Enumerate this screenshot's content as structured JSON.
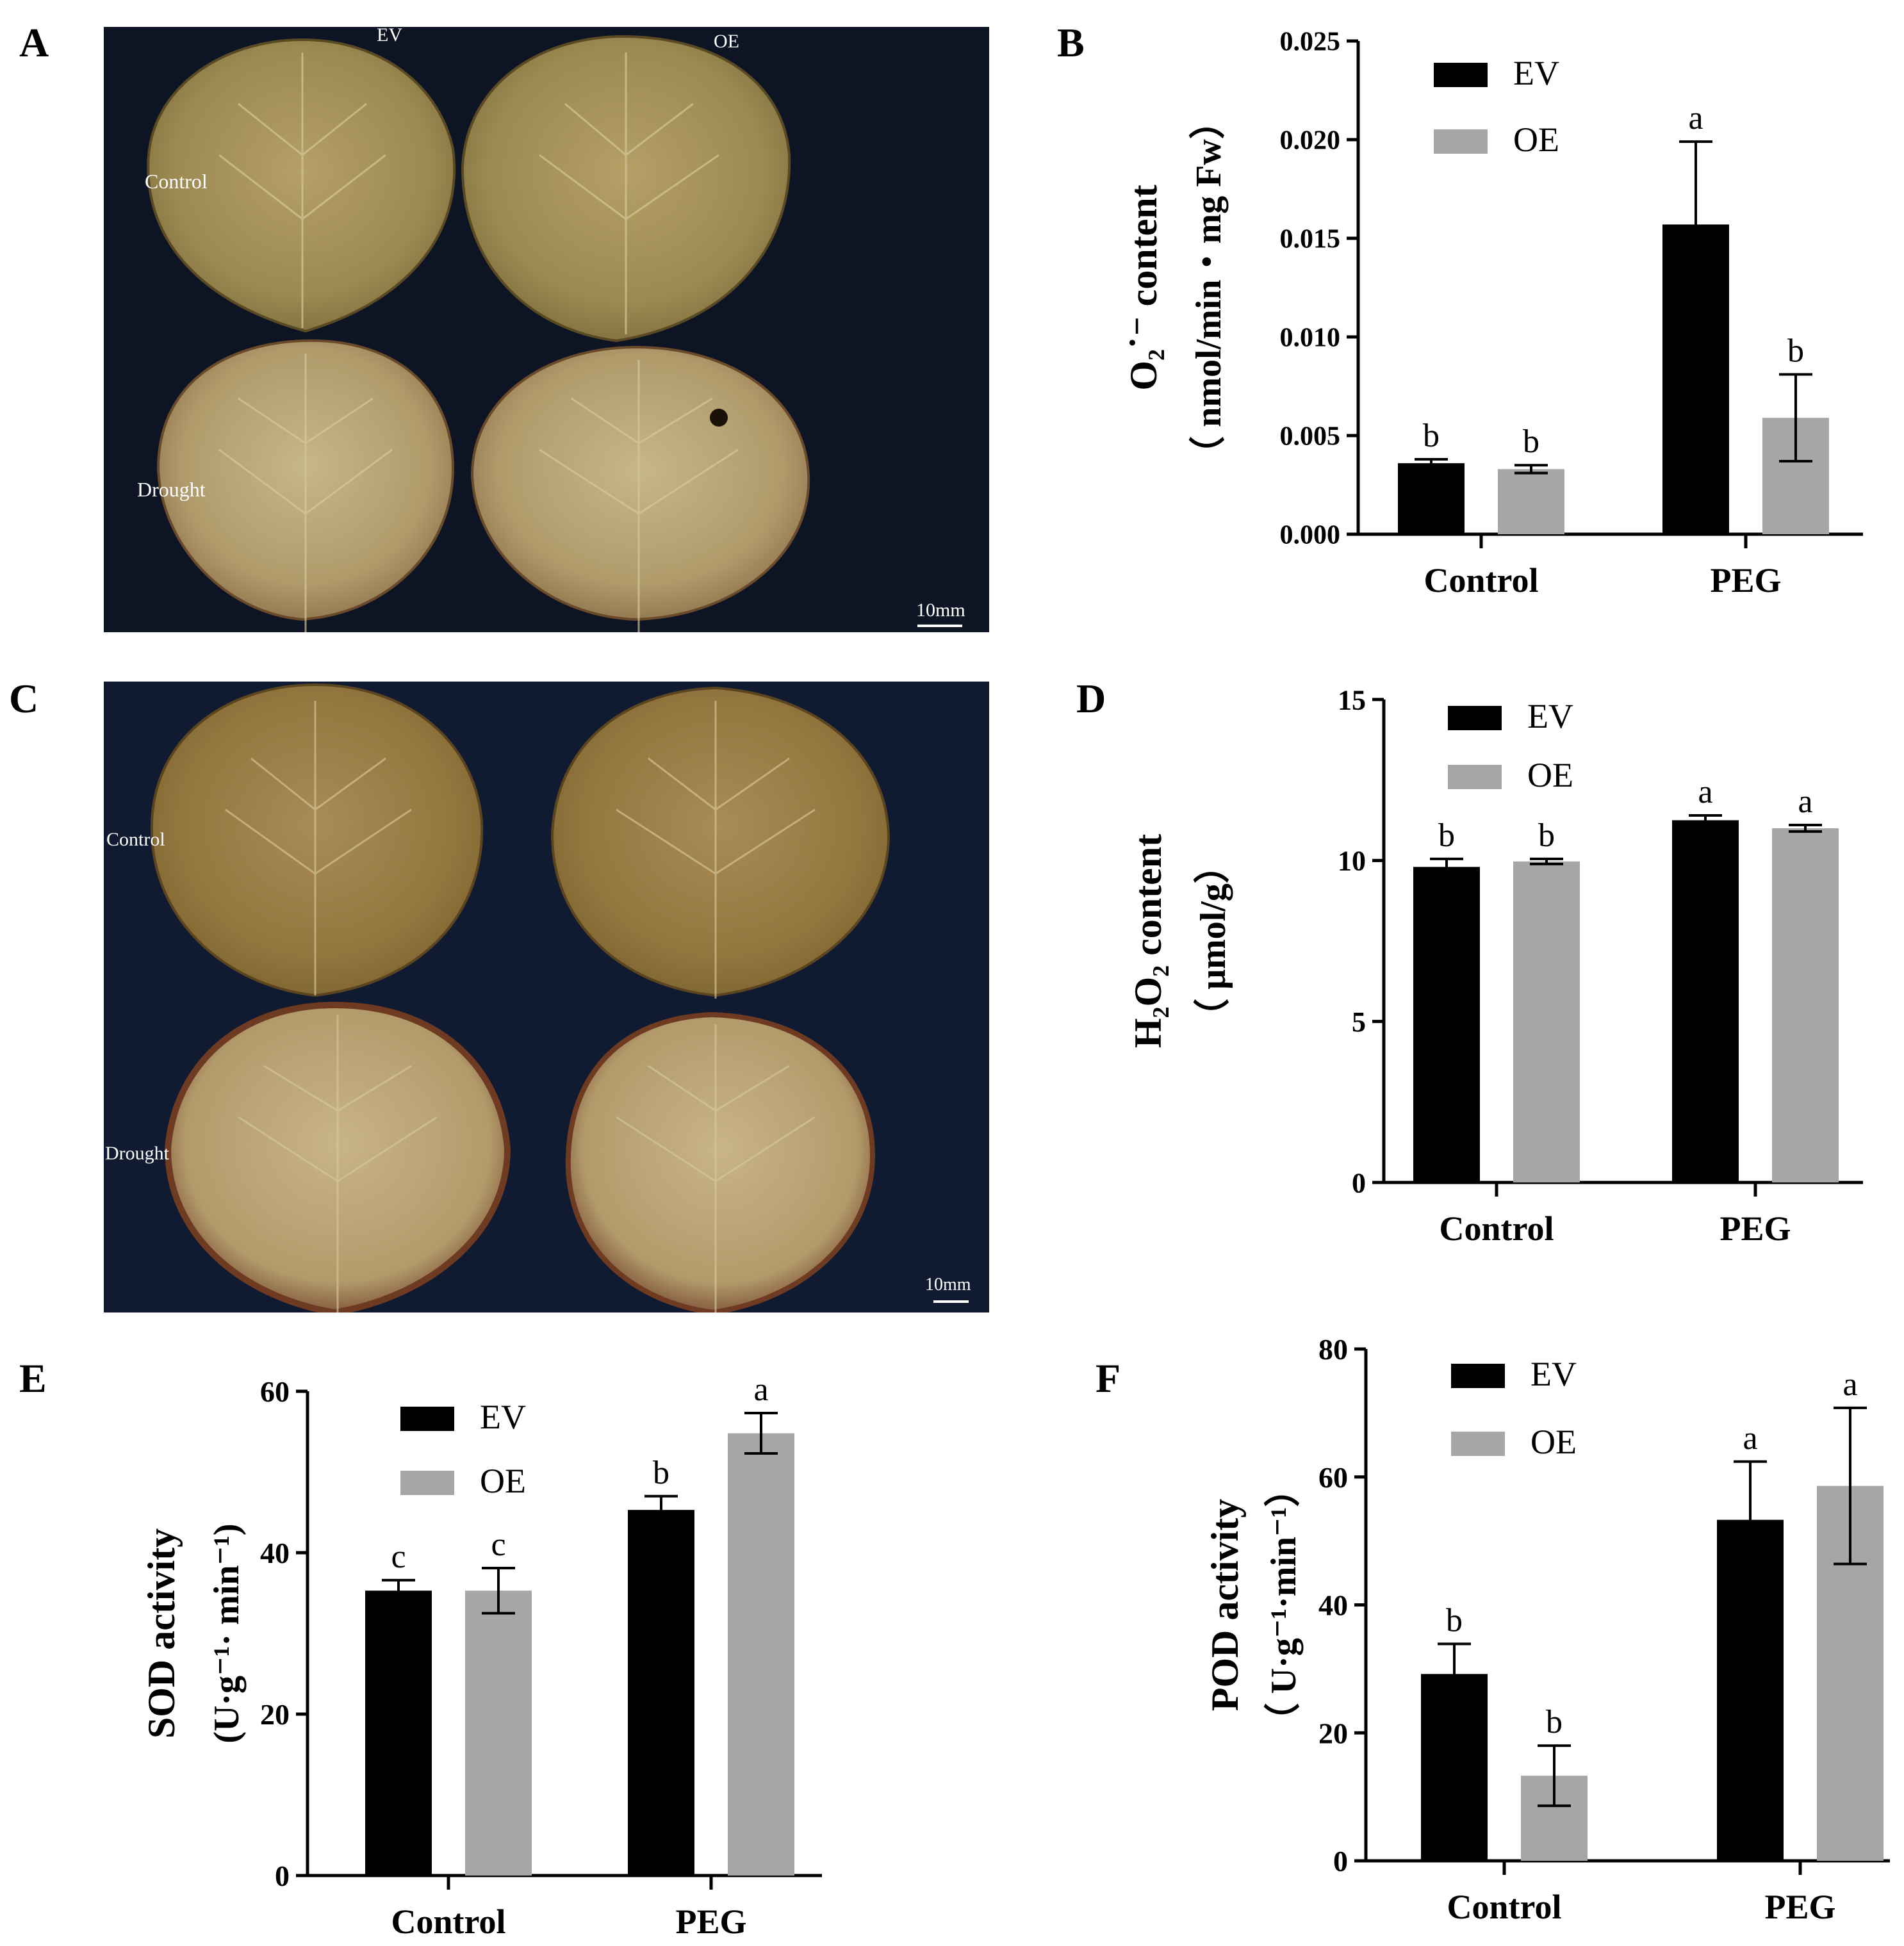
{
  "panels": {
    "A": "A",
    "B": "B",
    "C": "C",
    "D": "D",
    "E": "E",
    "F": "F"
  },
  "photoA": {
    "col_labels": [
      "EV",
      "OE"
    ],
    "row_labels": [
      "Control",
      "Drought"
    ],
    "scale": "10mm"
  },
  "photoC": {
    "row_labels": [
      "Control",
      "Drought"
    ],
    "scale": "10mm"
  },
  "colors": {
    "EV": "#000000",
    "OE": "#a6a6a6",
    "photo_bg": "#0d1424"
  },
  "chart_data": [
    {
      "panel": "B",
      "type": "bar",
      "categories": [
        "Control",
        "PEG"
      ],
      "series": [
        {
          "name": "EV",
          "values": [
            0.0036,
            0.0157
          ],
          "errors": [
            0.0002,
            0.0042
          ],
          "letters": [
            "b",
            "a"
          ]
        },
        {
          "name": "OE",
          "values": [
            0.0033,
            0.0059
          ],
          "errors": [
            0.0002,
            0.0022
          ],
          "letters": [
            "b",
            "b"
          ]
        }
      ],
      "ylim": [
        0,
        0.025
      ],
      "yticks": [
        "0.000",
        "0.005",
        "0.010",
        "0.015",
        "0.020",
        "0.025"
      ],
      "ylabel_line1": "O₂˙⁻ content",
      "ylabel_line2": "（ nmol/min・mg Fw）",
      "legend": "top-left"
    },
    {
      "panel": "D",
      "type": "bar",
      "categories": [
        "Control",
        "PEG"
      ],
      "series": [
        {
          "name": "EV",
          "values": [
            9.8,
            11.25
          ],
          "errors": [
            0.25,
            0.15
          ],
          "letters": [
            "b",
            "a"
          ]
        },
        {
          "name": "OE",
          "values": [
            9.97,
            11.0
          ],
          "errors": [
            0.08,
            0.1
          ],
          "letters": [
            "b",
            "a"
          ]
        }
      ],
      "ylim": [
        0,
        15
      ],
      "yticks": [
        "0",
        "5",
        "10",
        "15"
      ],
      "ylabel_line1": "H₂O₂ content",
      "ylabel_line2": "（ μmol/g）",
      "legend": "top-left"
    },
    {
      "panel": "E",
      "type": "bar",
      "categories": [
        "Control",
        "PEG"
      ],
      "series": [
        {
          "name": "EV",
          "values": [
            35.3,
            45.3
          ],
          "errors": [
            1.3,
            1.7
          ],
          "letters": [
            "c",
            "b"
          ]
        },
        {
          "name": "OE",
          "values": [
            35.3,
            54.8
          ],
          "errors": [
            2.8,
            2.5
          ],
          "letters": [
            "c",
            "a"
          ]
        }
      ],
      "ylim": [
        0,
        60
      ],
      "yticks": [
        "0",
        "20",
        "40",
        "60"
      ],
      "ylabel_line1": "SOD activity",
      "ylabel_line2": "(U·g⁻¹· min⁻¹)",
      "legend": "top-left"
    },
    {
      "panel": "F",
      "type": "bar",
      "categories": [
        "Control",
        "PEG"
      ],
      "series": [
        {
          "name": "EV",
          "values": [
            29.2,
            53.3
          ],
          "errors": [
            4.7,
            9.1
          ],
          "letters": [
            "b",
            "a"
          ]
        },
        {
          "name": "OE",
          "values": [
            13.3,
            58.6
          ],
          "errors": [
            4.7,
            12.2
          ],
          "letters": [
            "b",
            "a"
          ]
        }
      ],
      "ylim": [
        0,
        80
      ],
      "yticks": [
        "0",
        "20",
        "40",
        "60",
        "80"
      ],
      "ylabel_line1": "POD activity",
      "ylabel_line2": "（ U·g⁻¹·min⁻¹）",
      "legend": "top-left"
    }
  ]
}
